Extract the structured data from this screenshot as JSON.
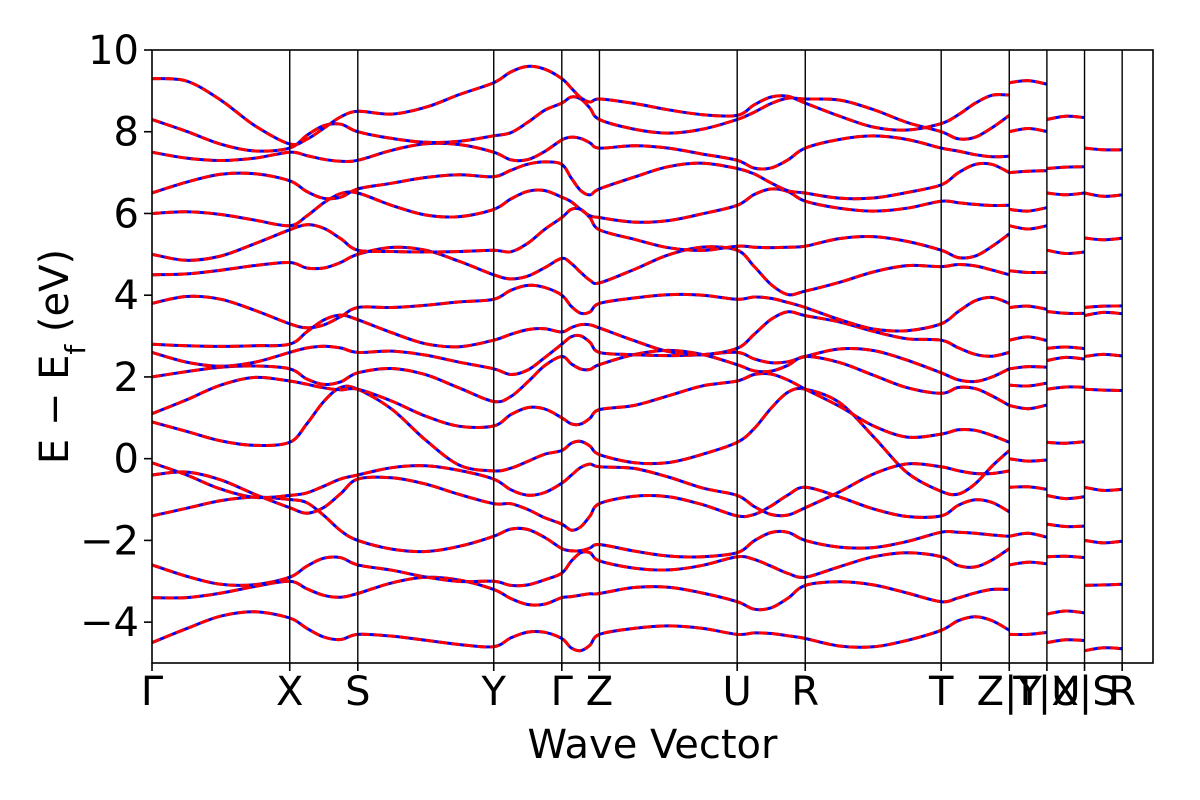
{
  "chart_data": {
    "type": "line",
    "xlabel": "Wave Vector",
    "ylabel": "E − E_f (eV)",
    "ylim": [
      -5,
      10
    ],
    "y_ticks": [
      -4,
      -2,
      0,
      2,
      4,
      6,
      8,
      10
    ],
    "y_tick_labels": [
      "−4",
      "−2",
      "0",
      "2",
      "4",
      "6",
      "8",
      "10"
    ],
    "grid": false,
    "legend": "none",
    "kpath": [
      {
        "label": "Γ",
        "k": 0.0
      },
      {
        "label": "X",
        "k": 0.1376
      },
      {
        "label": "S",
        "k": 0.2056
      },
      {
        "label": "Y",
        "k": 0.3414
      },
      {
        "label": "Γ",
        "k": 0.4094
      },
      {
        "label": "Z",
        "k": 0.447
      },
      {
        "label": "U",
        "k": 0.5846
      },
      {
        "label": "R",
        "k": 0.6526
      },
      {
        "label": "T",
        "k": 0.7884
      },
      {
        "label": "Z|Y",
        "k": 0.8564
      },
      {
        "label": "T|U",
        "k": 0.894
      },
      {
        "label": "X|S",
        "k": 0.9316
      },
      {
        "label": "R",
        "k": 0.9692
      }
    ],
    "series": [
      {
        "color": "#0000ff",
        "style": "solid"
      },
      {
        "color": "#ff0000",
        "style": "dashed"
      }
    ],
    "bands": [
      {
        "label_pts": [
          [
            0,
            -4.5
          ],
          [
            0.1376,
            -3.9
          ],
          [
            0.2056,
            -4.3
          ],
          [
            0.3414,
            -4.6
          ],
          [
            0.4094,
            -4.4
          ],
          [
            0.447,
            -4.3
          ],
          [
            0.5846,
            -4.3
          ],
          [
            0.6526,
            -4.4
          ],
          [
            0.7884,
            -4.2
          ],
          [
            0.8564,
            -4.2
          ]
        ]
      },
      {
        "label_pts": [
          [
            0,
            -3.4
          ],
          [
            0.1376,
            -3.0
          ],
          [
            0.2056,
            -3.3
          ],
          [
            0.3414,
            -3.2
          ],
          [
            0.4094,
            -3.4
          ],
          [
            0.447,
            -3.3
          ],
          [
            0.5846,
            -3.5
          ],
          [
            0.6526,
            -3.1
          ],
          [
            0.7884,
            -3.5
          ],
          [
            0.8564,
            -3.2
          ]
        ]
      },
      {
        "label_pts": [
          [
            0,
            -2.6
          ],
          [
            0.1376,
            -2.9
          ],
          [
            0.2056,
            -2.6
          ],
          [
            0.3414,
            -3.0
          ],
          [
            0.4094,
            -2.8
          ],
          [
            0.447,
            -2.5
          ],
          [
            0.5846,
            -2.4
          ],
          [
            0.6526,
            -2.9
          ],
          [
            0.7884,
            -2.4
          ],
          [
            0.8564,
            -2.2
          ]
        ]
      },
      {
        "label_pts": [
          [
            0,
            -1.4
          ],
          [
            0.1376,
            -1.0
          ],
          [
            0.2056,
            -2.0
          ],
          [
            0.3414,
            -1.9
          ],
          [
            0.4094,
            -2.2
          ],
          [
            0.447,
            -2.1
          ],
          [
            0.5846,
            -2.3
          ],
          [
            0.6526,
            -2.0
          ],
          [
            0.7884,
            -1.8
          ],
          [
            0.8564,
            -1.9
          ]
        ]
      },
      {
        "label_pts": [
          [
            0,
            -0.4
          ],
          [
            0.1376,
            -1.2
          ],
          [
            0.2056,
            -0.5
          ],
          [
            0.3414,
            -1.1
          ],
          [
            0.4094,
            -1.6
          ],
          [
            0.447,
            -1.1
          ],
          [
            0.5846,
            -1.4
          ],
          [
            0.6526,
            -0.7
          ],
          [
            0.7884,
            -1.4
          ],
          [
            0.8564,
            -1.3
          ]
        ]
      },
      {
        "label_pts": [
          [
            0,
            -0.1
          ],
          [
            0.1376,
            -0.9
          ],
          [
            0.2056,
            -0.4
          ],
          [
            0.3414,
            -0.5
          ],
          [
            0.4094,
            -0.6
          ],
          [
            0.447,
            -0.2
          ],
          [
            0.5846,
            -0.9
          ],
          [
            0.6526,
            -1.2
          ],
          [
            0.7884,
            -0.2
          ],
          [
            0.8564,
            -0.3
          ]
        ]
      },
      {
        "label_pts": [
          [
            0,
            0.9
          ],
          [
            0.1376,
            0.4
          ],
          [
            0.2056,
            1.7
          ],
          [
            0.3414,
            -0.3
          ],
          [
            0.4094,
            0.2
          ],
          [
            0.447,
            0.1
          ],
          [
            0.5846,
            0.4
          ],
          [
            0.6526,
            1.7
          ],
          [
            0.7884,
            -0.8
          ],
          [
            0.8564,
            0.2
          ]
        ]
      },
      {
        "label_pts": [
          [
            0,
            1.1
          ],
          [
            0.1376,
            1.9
          ],
          [
            0.2056,
            1.7
          ],
          [
            0.3414,
            0.8
          ],
          [
            0.4094,
            1.0
          ],
          [
            0.447,
            1.2
          ],
          [
            0.5846,
            1.9
          ],
          [
            0.6526,
            1.7
          ],
          [
            0.7884,
            0.6
          ],
          [
            0.8564,
            0.4
          ]
        ]
      },
      {
        "label_pts": [
          [
            0,
            2.0
          ],
          [
            0.1376,
            2.2
          ],
          [
            0.2056,
            2.1
          ],
          [
            0.3414,
            1.4
          ],
          [
            0.4094,
            2.5
          ],
          [
            0.447,
            2.3
          ],
          [
            0.5846,
            2.3
          ],
          [
            0.6526,
            2.5
          ],
          [
            0.7884,
            1.6
          ],
          [
            0.8564,
            1.3
          ]
        ]
      },
      {
        "label_pts": [
          [
            0,
            2.6
          ],
          [
            0.1376,
            2.6
          ],
          [
            0.2056,
            2.6
          ],
          [
            0.3414,
            2.2
          ],
          [
            0.4094,
            2.8
          ],
          [
            0.447,
            2.6
          ],
          [
            0.5846,
            2.6
          ],
          [
            0.6526,
            2.5
          ],
          [
            0.7884,
            2.1
          ],
          [
            0.8564,
            2.2
          ]
        ]
      },
      {
        "label_pts": [
          [
            0,
            2.8
          ],
          [
            0.1376,
            2.8
          ],
          [
            0.2056,
            3.4
          ],
          [
            0.3414,
            2.9
          ],
          [
            0.4094,
            3.1
          ],
          [
            0.447,
            3.2
          ],
          [
            0.5846,
            2.7
          ],
          [
            0.6526,
            3.5
          ],
          [
            0.7884,
            2.9
          ],
          [
            0.8564,
            2.6
          ]
        ]
      },
      {
        "label_pts": [
          [
            0,
            3.8
          ],
          [
            0.1376,
            3.3
          ],
          [
            0.2056,
            3.7
          ],
          [
            0.3414,
            3.9
          ],
          [
            0.4094,
            4.0
          ],
          [
            0.447,
            3.8
          ],
          [
            0.5846,
            3.9
          ],
          [
            0.6526,
            3.7
          ],
          [
            0.7884,
            3.3
          ],
          [
            0.8564,
            3.8
          ]
        ]
      },
      {
        "label_pts": [
          [
            0,
            4.5
          ],
          [
            0.1376,
            4.8
          ],
          [
            0.2056,
            5.0
          ],
          [
            0.3414,
            4.5
          ],
          [
            0.4094,
            4.9
          ],
          [
            0.447,
            4.3
          ],
          [
            0.5846,
            5.1
          ],
          [
            0.6526,
            4.1
          ],
          [
            0.7884,
            4.7
          ],
          [
            0.8564,
            4.5
          ]
        ]
      },
      {
        "label_pts": [
          [
            0,
            5.0
          ],
          [
            0.1376,
            5.6
          ],
          [
            0.2056,
            5.1
          ],
          [
            0.3414,
            5.1
          ],
          [
            0.4094,
            5.9
          ],
          [
            0.447,
            5.6
          ],
          [
            0.5846,
            5.2
          ],
          [
            0.6526,
            5.2
          ],
          [
            0.7884,
            5.1
          ],
          [
            0.8564,
            5.5
          ]
        ]
      },
      {
        "label_pts": [
          [
            0,
            6.0
          ],
          [
            0.1376,
            5.7
          ],
          [
            0.2056,
            6.5
          ],
          [
            0.3414,
            6.1
          ],
          [
            0.4094,
            6.4
          ],
          [
            0.447,
            5.9
          ],
          [
            0.5846,
            6.2
          ],
          [
            0.6526,
            6.3
          ],
          [
            0.7884,
            6.3
          ],
          [
            0.8564,
            6.2
          ]
        ]
      },
      {
        "label_pts": [
          [
            0,
            6.5
          ],
          [
            0.1376,
            6.8
          ],
          [
            0.2056,
            6.6
          ],
          [
            0.3414,
            6.9
          ],
          [
            0.4094,
            7.2
          ],
          [
            0.447,
            6.6
          ],
          [
            0.5846,
            7.1
          ],
          [
            0.6526,
            6.5
          ],
          [
            0.7884,
            6.7
          ],
          [
            0.8564,
            7.0
          ]
        ]
      },
      {
        "label_pts": [
          [
            0,
            7.5
          ],
          [
            0.1376,
            7.5
          ],
          [
            0.2056,
            7.3
          ],
          [
            0.3414,
            7.5
          ],
          [
            0.4094,
            7.8
          ],
          [
            0.447,
            7.6
          ],
          [
            0.5846,
            7.3
          ],
          [
            0.6526,
            7.6
          ],
          [
            0.7884,
            7.6
          ],
          [
            0.8564,
            7.4
          ]
        ]
      },
      {
        "label_pts": [
          [
            0,
            8.3
          ],
          [
            0.1376,
            7.6
          ],
          [
            0.2056,
            8.0
          ],
          [
            0.3414,
            7.9
          ],
          [
            0.4094,
            8.7
          ],
          [
            0.447,
            8.3
          ],
          [
            0.5846,
            8.3
          ],
          [
            0.6526,
            8.8
          ],
          [
            0.7884,
            8.0
          ],
          [
            0.8564,
            8.4
          ]
        ]
      },
      {
        "label_pts": [
          [
            0,
            9.3
          ],
          [
            0.1376,
            7.7
          ],
          [
            0.2056,
            8.5
          ],
          [
            0.3414,
            9.2
          ],
          [
            0.4094,
            9.3
          ],
          [
            0.447,
            8.8
          ],
          [
            0.5846,
            8.4
          ],
          [
            0.6526,
            8.7
          ],
          [
            0.7884,
            8.2
          ],
          [
            0.8564,
            8.9
          ]
        ]
      }
    ],
    "segment_bands": [
      {
        "start": 0.8564,
        "end": 0.894,
        "values": [
          -4.3,
          -2.6,
          -1.9,
          -0.7,
          0.0,
          1.3,
          1.8,
          2.2,
          2.9,
          3.7,
          4.6,
          5.7,
          6.1,
          7.0,
          8.0,
          9.2
        ]
      },
      {
        "start": 0.894,
        "end": 0.9316,
        "values": [
          -4.5,
          -3.8,
          -2.4,
          -1.6,
          -0.9,
          0.4,
          1.7,
          2.4,
          2.7,
          3.6,
          5.1,
          6.5,
          7.1,
          8.3
        ]
      },
      {
        "start": 0.9316,
        "end": 0.9692,
        "values": [
          -4.7,
          -3.1,
          -2.0,
          -0.7,
          1.7,
          2.5,
          3.5,
          3.7,
          5.4,
          6.5,
          7.6
        ]
      }
    ]
  }
}
